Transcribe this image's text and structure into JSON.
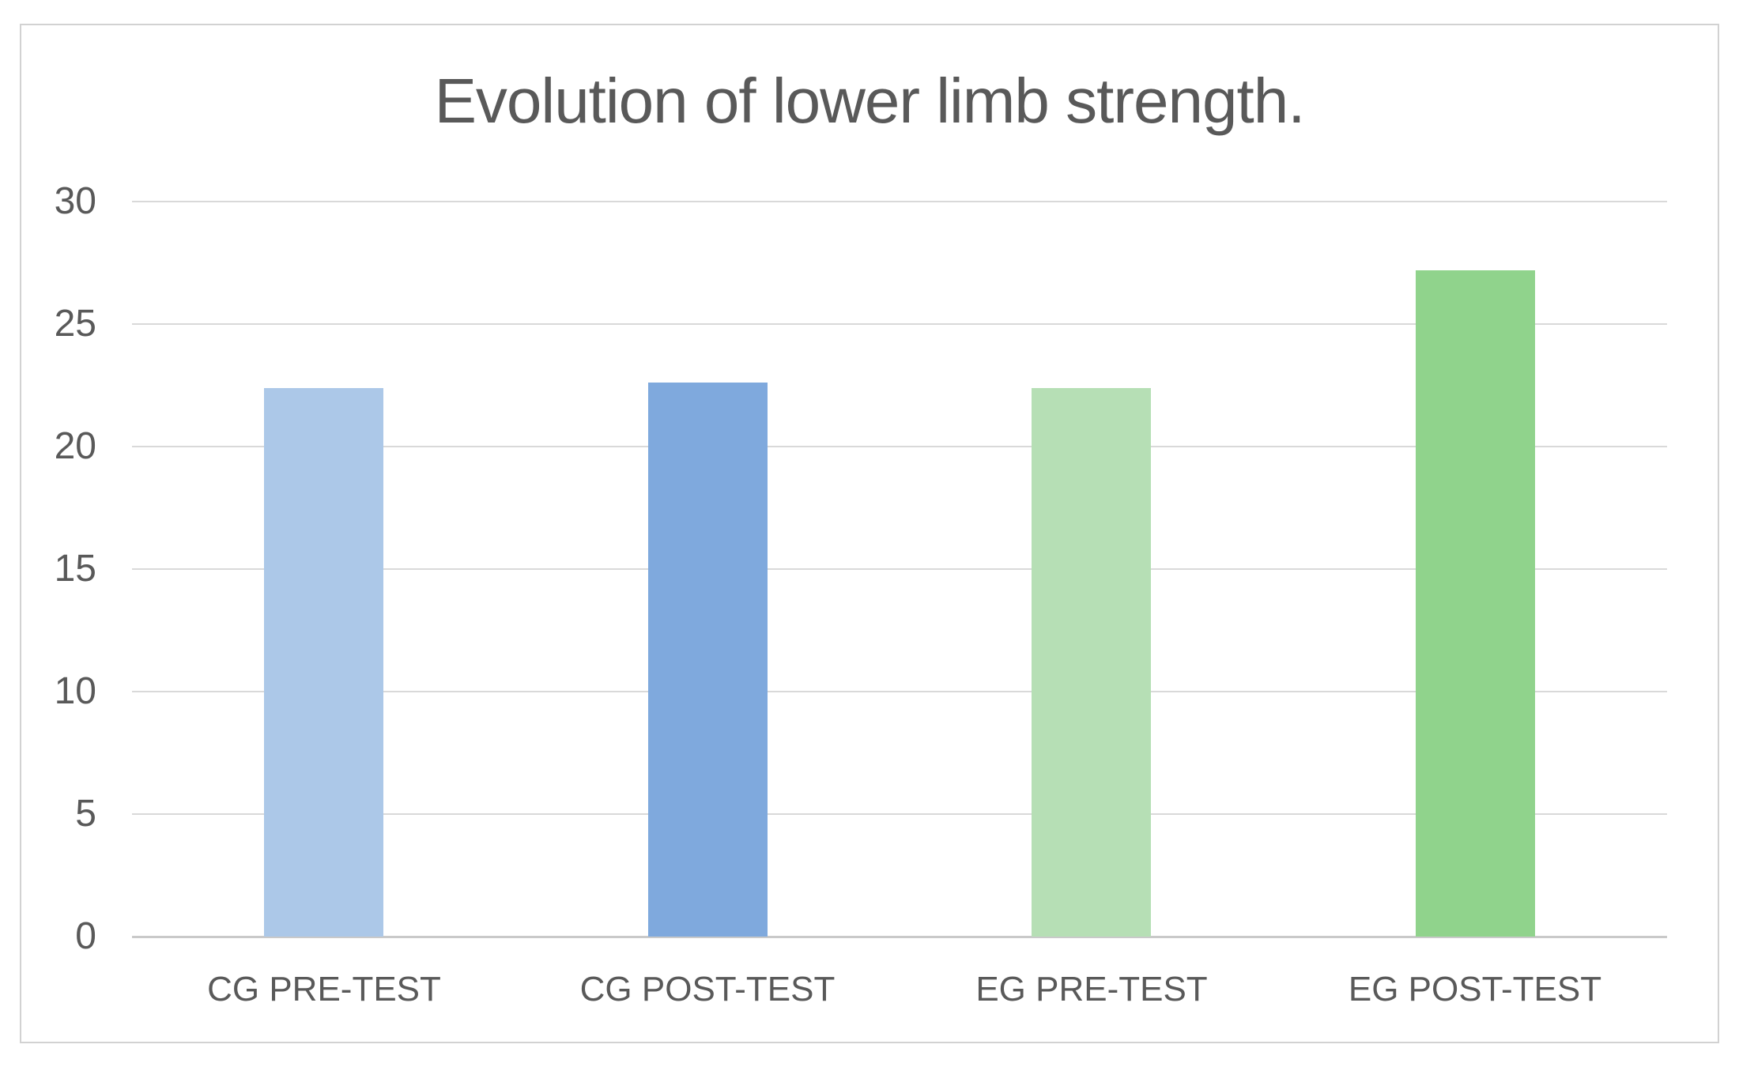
{
  "chart_data": {
    "type": "bar",
    "title": "Evolution of lower limb strength.",
    "categories": [
      "CG PRE-TEST",
      "CG POST-TEST",
      "EG PRE-TEST",
      "EG POST-TEST"
    ],
    "values": [
      22.4,
      22.6,
      22.4,
      27.2
    ],
    "bar_colors": [
      "#acc8e8",
      "#7fa9dd",
      "#b6dfb5",
      "#90d38c"
    ],
    "xlabel": "",
    "ylabel": "",
    "ylim": [
      0,
      30
    ],
    "yticks": [
      0,
      5,
      10,
      15,
      20,
      25,
      30
    ],
    "grid": true,
    "legend": false,
    "layout_hints": {
      "gridlines": "horizontal only",
      "bar_gap": "wide, single series, 4 categories",
      "tick_labels_outside_plot": true
    },
    "colors": {
      "title_text": "#595959",
      "axis_text": "#595959",
      "gridline": "#d9d9d9",
      "axis_line": "#c9c9c9",
      "chart_border": "#d2d2d2",
      "background": "#ffffff"
    }
  }
}
